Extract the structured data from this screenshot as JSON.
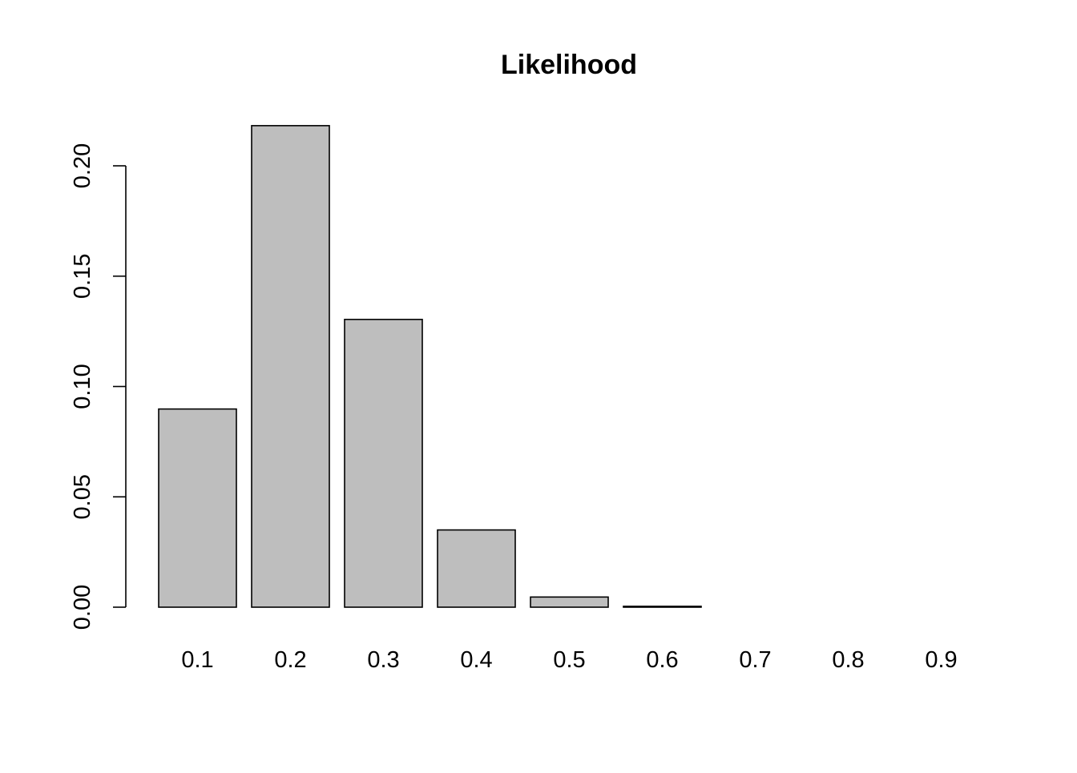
{
  "chart_data": {
    "type": "bar",
    "title": "Likelihood",
    "xlabel": "",
    "ylabel": "",
    "categories": [
      "0.1",
      "0.2",
      "0.3",
      "0.4",
      "0.5",
      "0.6",
      "0.7",
      "0.8",
      "0.9"
    ],
    "values": [
      0.0898,
      0.2182,
      0.1304,
      0.035,
      0.0046,
      0.0004,
      0.0,
      0.0,
      0.0
    ],
    "ylim": [
      0,
      0.2182
    ],
    "yticks": [
      "0.00",
      "0.05",
      "0.10",
      "0.15",
      "0.20"
    ],
    "ytick_values": [
      0,
      0.05,
      0.1,
      0.15,
      0.2
    ],
    "grid": false,
    "legend": "none",
    "colors": {
      "bar_fill": "#bebebe",
      "bar_stroke": "#000000"
    }
  }
}
